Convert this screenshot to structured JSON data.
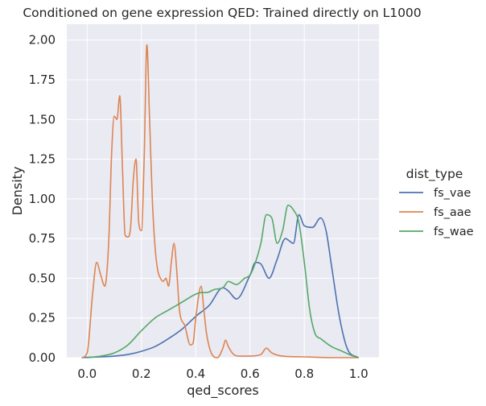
{
  "chart_data": {
    "type": "line",
    "title": "Conditioned on gene expression QED: Trained directly on L1000",
    "xlabel": "qed_scores",
    "ylabel": "Density",
    "xlim": [
      -0.075,
      1.075
    ],
    "ylim": [
      0,
      2.1
    ],
    "x_ticks": [
      "0.0",
      "0.2",
      "0.4",
      "0.6",
      "0.8",
      "1.0"
    ],
    "y_ticks": [
      "0.00",
      "0.25",
      "0.50",
      "0.75",
      "1.00",
      "1.25",
      "1.50",
      "1.75",
      "2.00"
    ],
    "grid": true,
    "legend": {
      "title": "dist_type",
      "placement": "right"
    },
    "series": [
      {
        "name": "fs_vae",
        "color": "#4c72b0",
        "x": [
          -0.02,
          0.0,
          0.05,
          0.1,
          0.15,
          0.2,
          0.25,
          0.3,
          0.35,
          0.4,
          0.45,
          0.5,
          0.52,
          0.55,
          0.6,
          0.62,
          0.64,
          0.67,
          0.7,
          0.73,
          0.76,
          0.78,
          0.8,
          0.83,
          0.86,
          0.88,
          0.9,
          0.93,
          0.96,
          1.0
        ],
        "y": [
          0.0,
          0.002,
          0.005,
          0.01,
          0.02,
          0.04,
          0.07,
          0.12,
          0.18,
          0.26,
          0.33,
          0.44,
          0.42,
          0.37,
          0.52,
          0.6,
          0.59,
          0.5,
          0.62,
          0.75,
          0.72,
          0.9,
          0.83,
          0.82,
          0.88,
          0.8,
          0.58,
          0.25,
          0.05,
          0.0
        ]
      },
      {
        "name": "fs_aae",
        "color": "#dd8452",
        "x": [
          -0.02,
          0.0,
          0.02,
          0.035,
          0.05,
          0.065,
          0.08,
          0.09,
          0.1,
          0.11,
          0.12,
          0.13,
          0.14,
          0.15,
          0.16,
          0.17,
          0.18,
          0.19,
          0.2,
          0.21,
          0.22,
          0.23,
          0.24,
          0.25,
          0.26,
          0.27,
          0.28,
          0.29,
          0.3,
          0.31,
          0.32,
          0.33,
          0.34,
          0.36,
          0.38,
          0.39,
          0.4,
          0.42,
          0.43,
          0.44,
          0.46,
          0.48,
          0.5,
          0.51,
          0.52,
          0.54,
          0.56,
          0.6,
          0.64,
          0.66,
          0.68,
          0.72,
          0.8,
          0.9,
          1.0
        ],
        "y": [
          0.0,
          0.03,
          0.4,
          0.6,
          0.52,
          0.45,
          0.75,
          1.28,
          1.52,
          1.5,
          1.65,
          1.2,
          0.77,
          0.76,
          0.82,
          1.12,
          1.25,
          0.85,
          0.8,
          1.25,
          1.97,
          1.5,
          1.0,
          0.7,
          0.55,
          0.5,
          0.48,
          0.5,
          0.45,
          0.6,
          0.72,
          0.55,
          0.3,
          0.2,
          0.08,
          0.09,
          0.25,
          0.45,
          0.3,
          0.15,
          0.02,
          0.0,
          0.06,
          0.11,
          0.07,
          0.02,
          0.01,
          0.01,
          0.02,
          0.06,
          0.03,
          0.01,
          0.005,
          0.0,
          0.0
        ]
      },
      {
        "name": "fs_wae",
        "color": "#55a868",
        "x": [
          0.0,
          0.05,
          0.1,
          0.15,
          0.2,
          0.25,
          0.3,
          0.35,
          0.4,
          0.42,
          0.44,
          0.47,
          0.5,
          0.52,
          0.55,
          0.58,
          0.6,
          0.62,
          0.64,
          0.66,
          0.68,
          0.7,
          0.72,
          0.74,
          0.76,
          0.78,
          0.8,
          0.82,
          0.84,
          0.86,
          0.9,
          0.94,
          0.98,
          1.0
        ],
        "y": [
          0.0,
          0.01,
          0.03,
          0.08,
          0.17,
          0.25,
          0.3,
          0.35,
          0.4,
          0.41,
          0.41,
          0.43,
          0.44,
          0.48,
          0.46,
          0.5,
          0.52,
          0.6,
          0.72,
          0.9,
          0.88,
          0.72,
          0.8,
          0.96,
          0.93,
          0.85,
          0.6,
          0.3,
          0.15,
          0.12,
          0.07,
          0.04,
          0.01,
          0.0
        ]
      }
    ]
  }
}
